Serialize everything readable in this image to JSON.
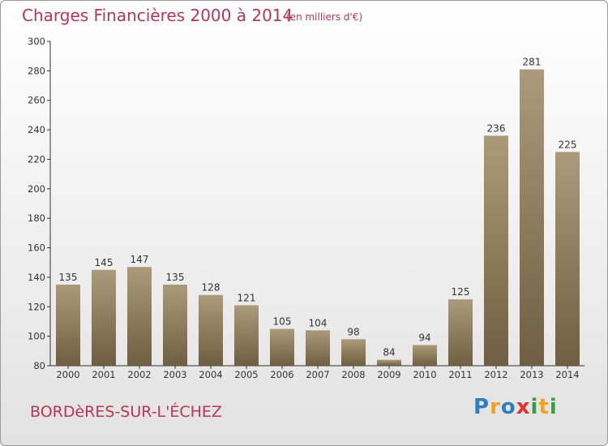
{
  "title": "Charges Financières 2000 à 2014",
  "subtitle": "(en milliers d'€)",
  "town": "BORDèRES-SUR-L'ÉCHEZ",
  "logo": {
    "text": "Proxiti",
    "letters": [
      "P",
      "r",
      "o",
      "x",
      "i",
      "t",
      "i"
    ],
    "colors": [
      "#2f7fc0",
      "#f2a21b",
      "#2f7fc0",
      "#e0312b",
      "#3f9b3b",
      "#f2a21b",
      "#3f9b3b"
    ]
  },
  "colors": {
    "bar_light": "#ab9b7b",
    "bar_dark": "#6f5e41",
    "title": "#b5365a"
  },
  "chart_data": {
    "type": "bar",
    "title": "Charges Financières 2000 à 2014",
    "subtitle": "(en milliers d'€)",
    "categories": [
      "2000",
      "2001",
      "2002",
      "2003",
      "2004",
      "2005",
      "2006",
      "2007",
      "2008",
      "2009",
      "2010",
      "2011",
      "2012",
      "2013",
      "2014"
    ],
    "values": [
      135,
      145,
      147,
      135,
      128,
      121,
      105,
      104,
      98,
      84,
      94,
      125,
      236,
      281,
      225
    ],
    "ylim": [
      80,
      300
    ],
    "yticks": [
      80,
      100,
      120,
      140,
      160,
      180,
      200,
      220,
      240,
      260,
      280,
      300
    ],
    "grid": false,
    "legend": "none"
  }
}
